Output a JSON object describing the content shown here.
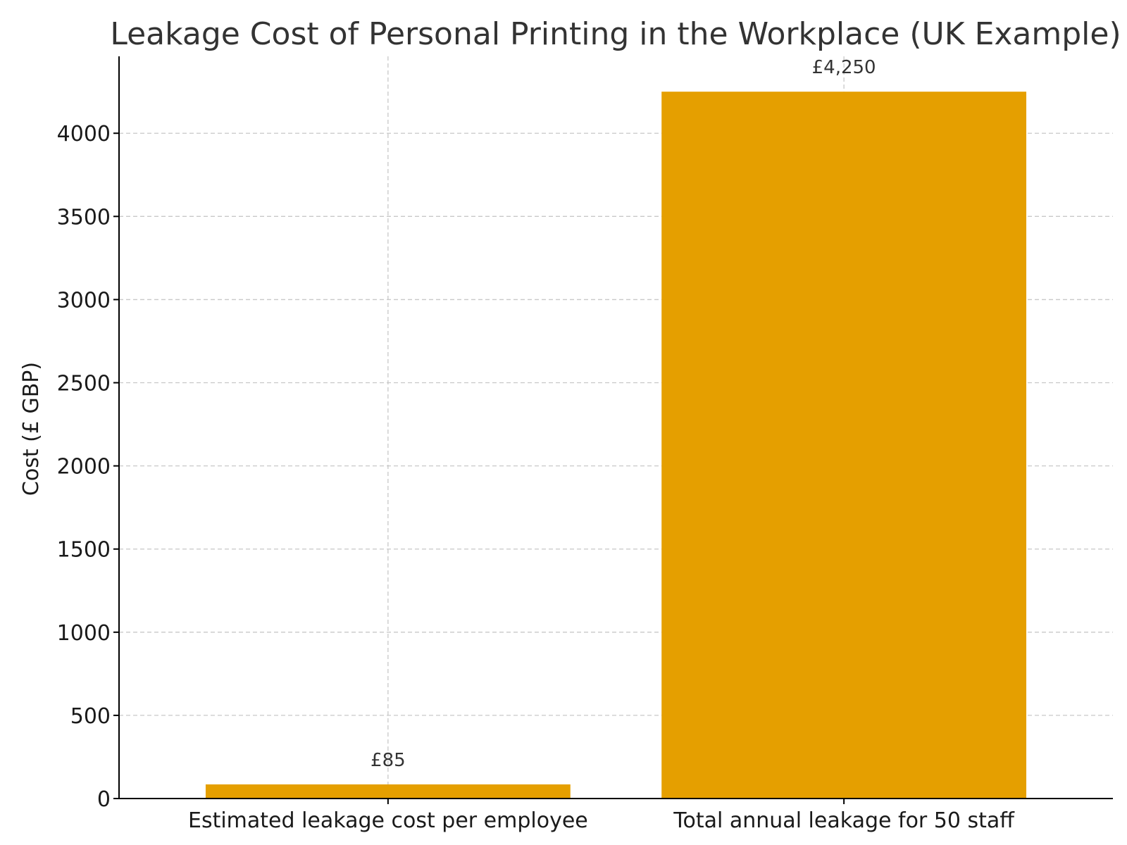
{
  "chart_data": {
    "type": "bar",
    "title": "Leakage Cost of Personal Printing in the Workplace (UK Example)",
    "xlabel": "",
    "ylabel": "Cost (£ GBP)",
    "categories": [
      "Estimated leakage cost per employee",
      "Total annual leakage for 50 staff"
    ],
    "values": [
      85,
      4250
    ],
    "data_labels": [
      "£85",
      "£4,250"
    ],
    "ylim": [
      0,
      4462.5
    ],
    "yticks": [
      0,
      500,
      1000,
      1500,
      2000,
      2500,
      3000,
      3500,
      4000
    ],
    "grid": true,
    "legend": "none",
    "bar_color": "#E59F00"
  }
}
